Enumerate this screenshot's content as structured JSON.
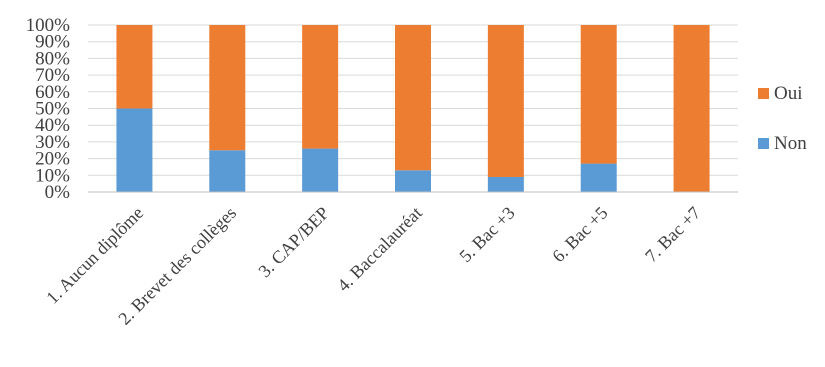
{
  "chart_data": {
    "type": "bar",
    "stacked": true,
    "normalized_percent": true,
    "categories": [
      "1. Aucun diplôme",
      "2. Brevet des collèges",
      "3. CAP/BEP",
      "4. Baccalauréat",
      "5. Bac +3",
      "6. Bac +5",
      "7. Bac +7"
    ],
    "series": [
      {
        "name": "Non",
        "values": [
          50,
          25,
          26,
          13,
          9,
          17,
          0
        ],
        "color": "#5b9bd5"
      },
      {
        "name": "Oui",
        "values": [
          50,
          75,
          74,
          87,
          91,
          83,
          100
        ],
        "color": "#ed7d31"
      }
    ],
    "y_ticks": [
      "0%",
      "10%",
      "20%",
      "30%",
      "40%",
      "50%",
      "60%",
      "70%",
      "80%",
      "90%",
      "100%"
    ],
    "ylim": [
      0,
      100
    ],
    "grid": true,
    "legend_position": "right",
    "legend_order": [
      "Oui",
      "Non"
    ],
    "gridline_color": "#d9d9d9",
    "axis_line_color": "#bfbfbf"
  }
}
